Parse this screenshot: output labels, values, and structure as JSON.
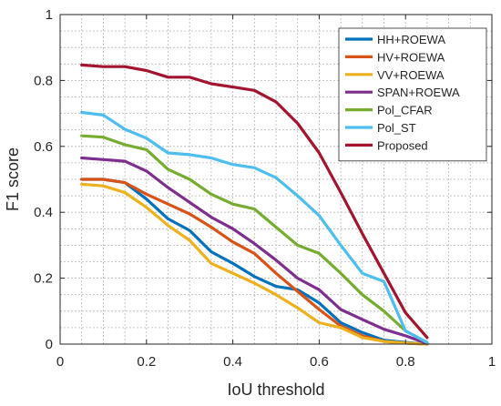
{
  "chart_data": {
    "type": "line",
    "xlabel": "IoU threshold",
    "ylabel": "F1 score",
    "xlim": [
      0,
      1
    ],
    "ylim": [
      0,
      1
    ],
    "xticks": [
      0,
      0.2,
      0.4,
      0.6,
      0.8,
      1
    ],
    "yticks": [
      0,
      0.2,
      0.4,
      0.6,
      0.8,
      1
    ],
    "xtick_labels": [
      "0",
      "0.2",
      "0.4",
      "0.6",
      "0.8",
      "1"
    ],
    "ytick_labels": [
      "0",
      "0.2",
      "0.4",
      "0.6",
      "0.8",
      "1"
    ],
    "grid": true,
    "legend_position": "top-right",
    "x": [
      0.05,
      0.1,
      0.15,
      0.2,
      0.25,
      0.3,
      0.35,
      0.4,
      0.45,
      0.5,
      0.55,
      0.6,
      0.65,
      0.7,
      0.75,
      0.8,
      0.85
    ],
    "series": [
      {
        "name": "HH+ROEWA",
        "color": "#0072bd",
        "values": [
          0.5,
          0.5,
          0.49,
          0.44,
          0.38,
          0.345,
          0.28,
          0.245,
          0.205,
          0.175,
          0.165,
          0.125,
          0.065,
          0.035,
          0.012,
          0.005,
          0.0
        ]
      },
      {
        "name": "HV+ROEWA",
        "color": "#d95319",
        "values": [
          0.5,
          0.5,
          0.49,
          0.455,
          0.425,
          0.395,
          0.355,
          0.31,
          0.275,
          0.215,
          0.16,
          0.105,
          0.055,
          0.025,
          0.008,
          0.003,
          0.0
        ]
      },
      {
        "name": "VV+ROEWA",
        "color": "#edb120",
        "values": [
          0.485,
          0.48,
          0.46,
          0.415,
          0.36,
          0.315,
          0.245,
          0.215,
          0.185,
          0.15,
          0.11,
          0.065,
          0.05,
          0.02,
          0.008,
          0.003,
          0.0
        ]
      },
      {
        "name": "SPAN+ROEWA",
        "color": "#7e2f8e",
        "values": [
          0.565,
          0.56,
          0.555,
          0.525,
          0.475,
          0.43,
          0.385,
          0.35,
          0.305,
          0.255,
          0.2,
          0.165,
          0.105,
          0.075,
          0.045,
          0.025,
          0.002
        ]
      },
      {
        "name": "Pol_CFAR",
        "color": "#77ac30",
        "values": [
          0.632,
          0.628,
          0.605,
          0.59,
          0.53,
          0.5,
          0.455,
          0.425,
          0.41,
          0.355,
          0.3,
          0.275,
          0.215,
          0.15,
          0.1,
          0.04,
          0.005
        ]
      },
      {
        "name": "Pol_ST",
        "color": "#4dbeee",
        "values": [
          0.703,
          0.695,
          0.652,
          0.625,
          0.58,
          0.575,
          0.565,
          0.545,
          0.535,
          0.505,
          0.45,
          0.39,
          0.3,
          0.215,
          0.19,
          0.04,
          0.005
        ]
      },
      {
        "name": "Proposed",
        "color": "#a2142f",
        "values": [
          0.847,
          0.842,
          0.842,
          0.83,
          0.81,
          0.81,
          0.79,
          0.78,
          0.77,
          0.735,
          0.67,
          0.58,
          0.46,
          0.335,
          0.215,
          0.095,
          0.02
        ]
      }
    ]
  }
}
